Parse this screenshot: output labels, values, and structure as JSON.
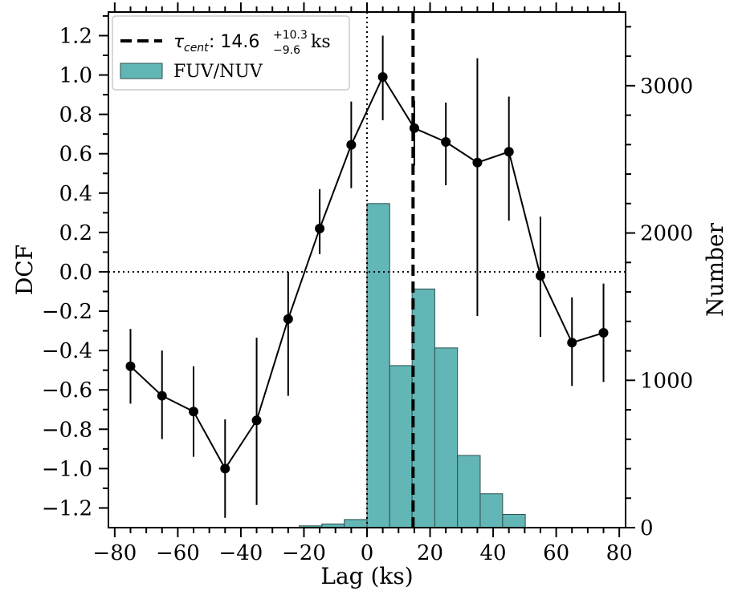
{
  "chart_data": {
    "type": "line",
    "xlabel": "Lag (ks)",
    "ylabel_left": "DCF",
    "ylabel_right": "Number",
    "xlim": [
      -82,
      82
    ],
    "ylim_left": [
      -1.3,
      1.32
    ],
    "ylim_right": [
      0,
      3500
    ],
    "x_ticks": [
      -80,
      -60,
      -40,
      -20,
      0,
      20,
      40,
      60,
      80
    ],
    "x_tick_labels": [
      "−80",
      "−60",
      "−40",
      "−20",
      "0",
      "20",
      "40",
      "60",
      "80"
    ],
    "y_left_ticks": [
      1.2,
      1.0,
      0.8,
      0.6,
      0.4,
      0.2,
      0.0,
      -0.2,
      -0.4,
      -0.6,
      -0.8,
      -1.0,
      -1.2
    ],
    "y_left_tick_labels": [
      "1.2",
      "1.0",
      "0.8",
      "0.6",
      "0.4",
      "0.2",
      "0.0",
      "−0.2",
      "−0.4",
      "−0.6",
      "−0.8",
      "−1.0",
      "−1.2"
    ],
    "y_right_ticks": [
      0,
      1000,
      2000,
      3000
    ],
    "y_right_tick_labels": [
      "0",
      "1000",
      "2000",
      "3000"
    ],
    "dcf_series": {
      "name": "DCF",
      "color": "#000000",
      "x": [
        -75,
        -65,
        -55,
        -45,
        -35,
        -25,
        -15,
        -5,
        5,
        15,
        25,
        35,
        45,
        55,
        65,
        75
      ],
      "y": [
        -0.48,
        -0.63,
        -0.71,
        -1.0,
        -0.755,
        -0.24,
        0.22,
        0.645,
        0.99,
        0.73,
        0.66,
        0.555,
        0.61,
        -0.02,
        -0.36,
        -0.31
      ],
      "err_low": [
        0.19,
        0.22,
        0.23,
        0.25,
        0.43,
        0.39,
        0.13,
        0.22,
        0.22,
        0.19,
        0.22,
        0.78,
        0.35,
        0.31,
        0.22,
        0.25
      ],
      "err_high": [
        0.19,
        0.23,
        0.23,
        0.25,
        0.42,
        0.24,
        0.2,
        0.22,
        0.21,
        0.14,
        0.2,
        0.53,
        0.28,
        0.3,
        0.23,
        0.25
      ]
    },
    "histogram": {
      "name": "FUV/NUV",
      "color": "#62b6b6",
      "edge_color": "#2f4f4f",
      "bin_edges": [
        -21.5,
        -14.3,
        -7.2,
        0,
        7.2,
        14.3,
        21.5,
        28.7,
        35.9,
        43.0,
        50.2
      ],
      "counts": [
        12,
        25,
        55,
        2200,
        1100,
        1620,
        1220,
        490,
        230,
        90
      ]
    },
    "center_lag": {
      "label": "τ",
      "subscript": "cent",
      "value_text": ": 14.6",
      "upper_err": "+10.3",
      "lower_err": "−9.6",
      "unit": "ks",
      "x": 14.6
    },
    "reference_lines": {
      "x": 0,
      "y": 0
    },
    "legend": {
      "position": "top-left",
      "entries": [
        "center_lag",
        "FUV/NUV"
      ]
    }
  }
}
